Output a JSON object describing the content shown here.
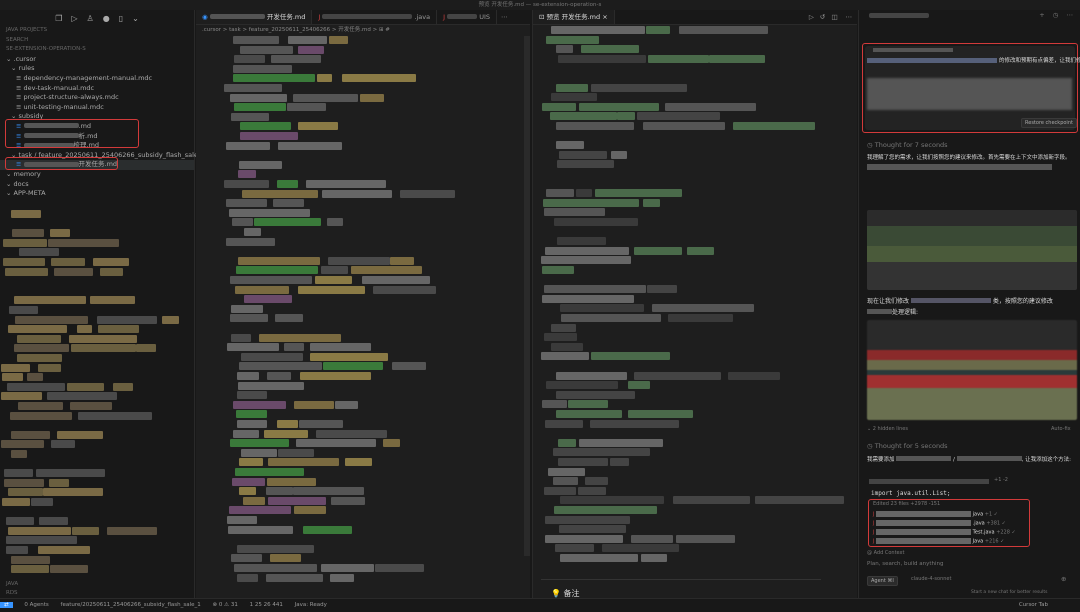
{
  "window": {
    "title": "预览 开发任务.md — se-extension-operation-s"
  },
  "sidebar": {
    "icons": [
      "files-icon",
      "run-icon",
      "account-icon",
      "extensions-icon",
      "device-icon",
      "more-icon"
    ],
    "sections": [
      "JAVA PROJECTS",
      "SEARCH",
      "SE-EXTENSION-OPERATION-S"
    ],
    "tree": [
      {
        "label": ".cursor",
        "depth": 0,
        "type": "folder"
      },
      {
        "label": "rules",
        "depth": 1,
        "type": "folder"
      },
      {
        "label": "dependency-management-manual.mdc",
        "depth": 2,
        "type": "file"
      },
      {
        "label": "dev-task-manual.mdc",
        "depth": 2,
        "type": "file"
      },
      {
        "label": "project-structure-always.mdc",
        "depth": 2,
        "type": "file"
      },
      {
        "label": "unit-testing-manual.mdc",
        "depth": 2,
        "type": "file"
      },
      {
        "label": "subsidy",
        "depth": 1,
        "type": "folder"
      },
      {
        "label": ".md",
        "depth": 2,
        "type": "file"
      },
      {
        "label": "析.md",
        "depth": 2,
        "type": "file"
      },
      {
        "label": "梳理.md",
        "depth": 2,
        "type": "file"
      },
      {
        "label": "task / feature_20250611_25406266_subsidy_flash_sale_1",
        "depth": 1,
        "type": "folder"
      },
      {
        "label": "开发任务.md",
        "depth": 2,
        "type": "file",
        "selected": true
      },
      {
        "label": "memory",
        "depth": 0,
        "type": "folder"
      },
      {
        "label": "docs",
        "depth": 0,
        "type": "folder"
      },
      {
        "label": "APP-META",
        "depth": 0,
        "type": "folder"
      }
    ],
    "bottom_sections": [
      "JAVA",
      "RDS"
    ]
  },
  "editor": {
    "tabs": [
      {
        "label": "开发任务.md",
        "active": true
      },
      {
        "label": ".java"
      },
      {
        "label": "UIS"
      }
    ],
    "breadcrumb": ".cursor > task > feature_20250611_25406266 > 开发任务.md > ⊞ #"
  },
  "preview": {
    "tab_label": "预览 开发任务.md",
    "footer_note": "备注"
  },
  "chat": {
    "user_message": "的修改和预期有点偏差，让我们修改一下",
    "restore_label": "Restore checkpoint",
    "thought1": "Thought for 7 seconds",
    "reply1": "我理解了您的需求，让我们按照您的建议来修改。首先需要在上下文中添加新字段。",
    "reply2_a": "现在让我们修改",
    "reply2_b": "类，按照您的建议修改",
    "reply2_c": "处理逻辑:",
    "hidden_lines": "2 hidden lines",
    "auto_fix": "Auto-fix",
    "thought2": "Thought for 5 seconds",
    "reply3_a": "我需要添加",
    "reply3_b": "让我添加这个方法:",
    "diff_count": "+1 -2",
    "code_line": "import java.util.List;",
    "edited_summary": "Edited 23 files +2978 -151",
    "edited_files": [
      {
        "name": "java",
        "delta": "+1"
      },
      {
        "name": ".java",
        "delta": "+381"
      },
      {
        "name": "Test.java",
        "delta": "+228"
      },
      {
        "name": "Java",
        "delta": "+216"
      }
    ],
    "add_context": "Add Context",
    "input_placeholder": "Plan, search, build anything",
    "mode": "Agent ⌘I",
    "model": "claude-4-sonnet",
    "new_chat_hint": "Start a new chat for better results",
    "cursor_tab": "Cursor Tab"
  },
  "status": {
    "agents": "0 Agents",
    "branch": "feature/20250611_25406266_subsidy_flash_sale_1",
    "problems": "⊗ 0 ⚠ 31",
    "position": "1 25 26 441",
    "java": "Java: Ready"
  },
  "colors": {
    "highlight_box": "#d23a3a",
    "background": "#1e1e1e",
    "accent": "#3794ff"
  }
}
